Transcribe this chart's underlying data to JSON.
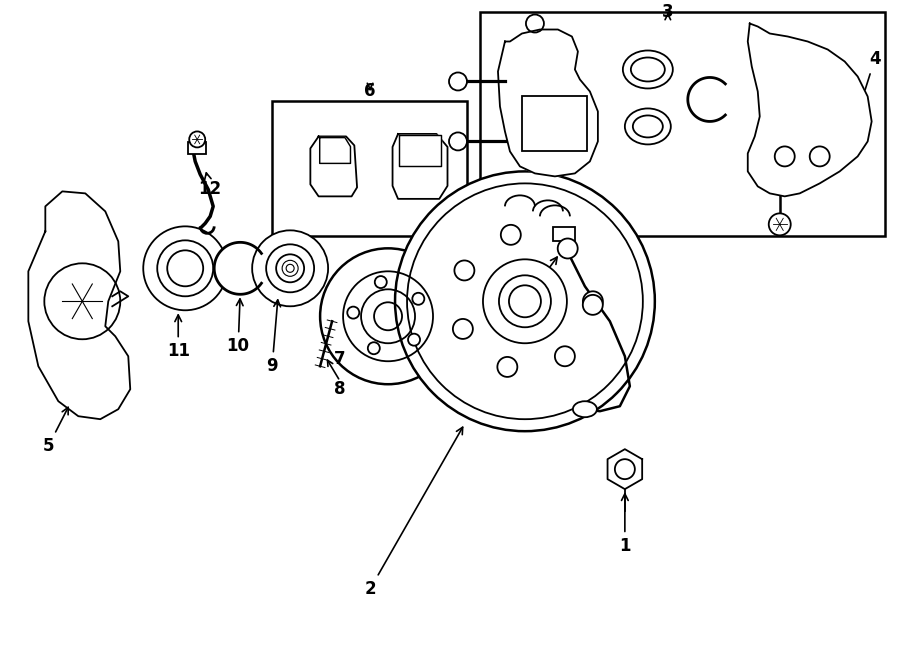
{
  "bg_color": "#ffffff",
  "line_color": "#000000",
  "text_color": "#000000",
  "fig_width": 9.0,
  "fig_height": 6.61,
  "dpi": 100,
  "xlim": [
    0,
    900
  ],
  "ylim": [
    0,
    661
  ]
}
